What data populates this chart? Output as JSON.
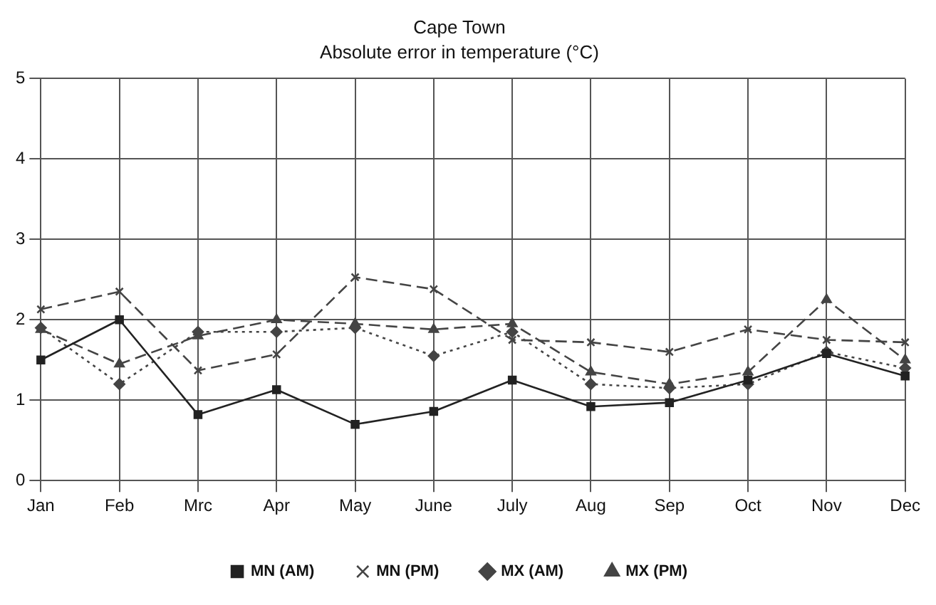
{
  "chart_data": {
    "type": "line",
    "title": "Cape Town",
    "subtitle": "Absolute error in temperature (°C)",
    "categories": [
      "Jan",
      "Feb",
      "Mrc",
      "Apr",
      "May",
      "June",
      "July",
      "Aug",
      "Sep",
      "Oct",
      "Nov",
      "Dec"
    ],
    "series": [
      {
        "name": "MN (AM)",
        "color": "#222222",
        "line_style": "solid",
        "marker": "square",
        "values": [
          1.5,
          2.0,
          0.82,
          1.13,
          0.7,
          0.86,
          1.25,
          0.92,
          0.97,
          1.25,
          1.58,
          1.3
        ]
      },
      {
        "name": "MN (PM)",
        "color": "#444444",
        "line_style": "dashed",
        "marker": "cross",
        "values": [
          2.13,
          2.35,
          1.37,
          1.57,
          2.53,
          2.38,
          1.75,
          1.72,
          1.6,
          1.88,
          1.75,
          1.72
        ]
      },
      {
        "name": "MX (AM)",
        "color": "#444444",
        "line_style": "dotted",
        "marker": "diamond",
        "values": [
          1.9,
          1.2,
          1.85,
          1.85,
          1.9,
          1.55,
          1.85,
          1.2,
          1.15,
          1.2,
          1.6,
          1.4
        ]
      },
      {
        "name": "MX (PM)",
        "color": "#444444",
        "line_style": "dashed",
        "marker": "triangle",
        "values": [
          1.88,
          1.45,
          1.8,
          2.0,
          1.95,
          1.88,
          1.95,
          1.35,
          1.2,
          1.35,
          2.25,
          1.5
        ]
      }
    ],
    "ylim": [
      0,
      5
    ],
    "yticks": [
      0,
      1,
      2,
      3,
      4,
      5
    ],
    "grid": true,
    "legend": "bottom"
  }
}
